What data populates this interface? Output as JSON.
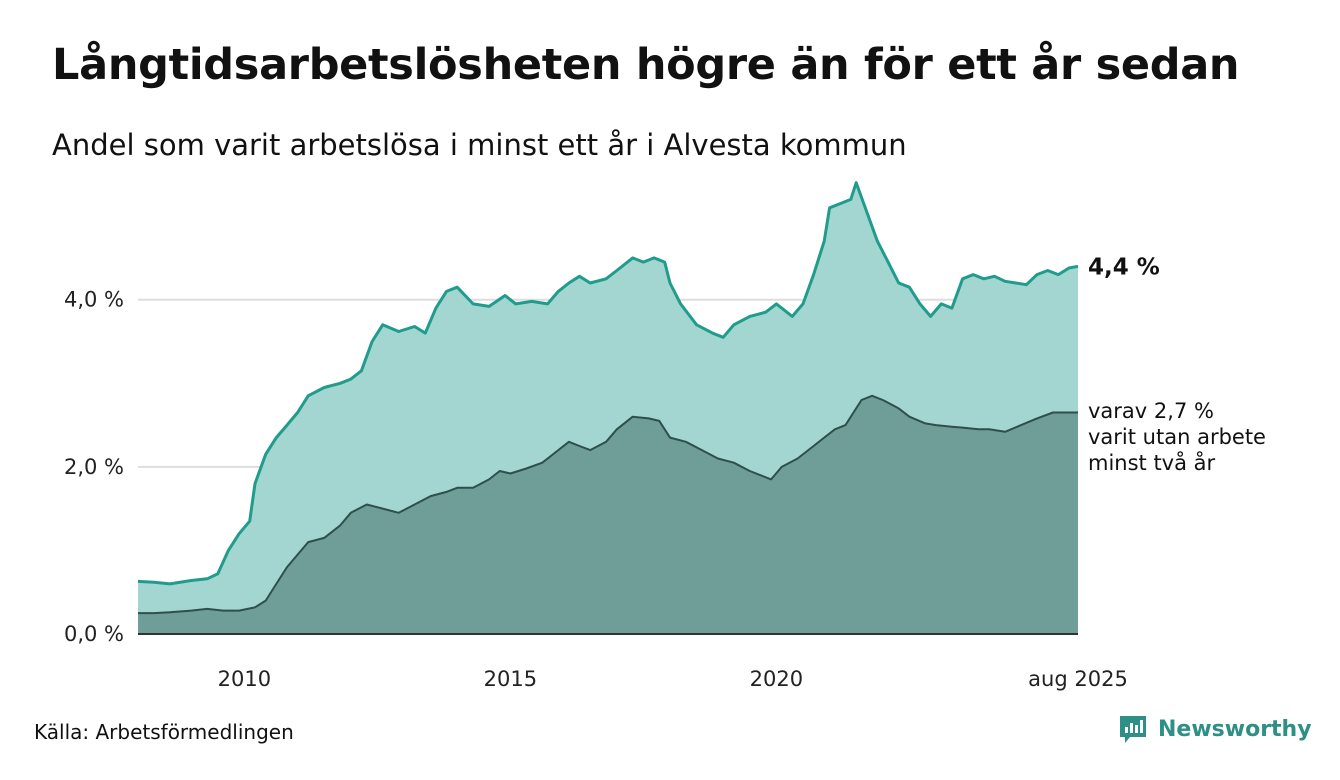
{
  "header": {
    "title": "Långtidsarbetslösheten högre än för ett år sedan",
    "subtitle": "Andel som varit arbetslösa i minst ett år i Alvesta kommun"
  },
  "footer": {
    "source": "Källa: Arbetsförmedlingen",
    "brand": "Newsworthy",
    "brand_icon": "newsworthy-logo-icon"
  },
  "colors": {
    "series_line": "#1f9c8c",
    "series_area": "#a3d6d1",
    "sub_line": "#2f4f4a",
    "sub_area": "#6f9e98",
    "grid": "#dddddd",
    "axis": "#333333",
    "brand": "#2e8f86"
  },
  "chart_data": {
    "type": "area",
    "title": "Långtidsarbetslösheten högre än för ett år sedan",
    "subtitle": "Andel som varit arbetslösa i minst ett år i Alvesta kommun",
    "xlabel": "",
    "ylabel": "",
    "x_range": [
      2008.0,
      2025.67
    ],
    "x_ticks": [
      2010,
      2015,
      2020
    ],
    "x_tick_labels": [
      "2010",
      "2015",
      "2020"
    ],
    "x_end_label": "aug 2025",
    "y_range": [
      0,
      5.6
    ],
    "y_ticks": [
      0,
      2,
      4
    ],
    "y_tick_labels": [
      "0,0 %",
      "2,0 %",
      "4,0 %"
    ],
    "grid": true,
    "series": [
      {
        "label": "4,4 %",
        "points": [
          [
            2008.0,
            0.63
          ],
          [
            2008.3,
            0.62
          ],
          [
            2008.6,
            0.6
          ],
          [
            2009.0,
            0.64
          ],
          [
            2009.3,
            0.66
          ],
          [
            2009.5,
            0.72
          ],
          [
            2009.7,
            1.0
          ],
          [
            2009.9,
            1.2
          ],
          [
            2010.1,
            1.35
          ],
          [
            2010.2,
            1.8
          ],
          [
            2010.4,
            2.15
          ],
          [
            2010.6,
            2.35
          ],
          [
            2010.8,
            2.5
          ],
          [
            2011.0,
            2.65
          ],
          [
            2011.2,
            2.85
          ],
          [
            2011.5,
            2.95
          ],
          [
            2011.8,
            3.0
          ],
          [
            2012.0,
            3.05
          ],
          [
            2012.2,
            3.15
          ],
          [
            2012.4,
            3.5
          ],
          [
            2012.6,
            3.7
          ],
          [
            2012.9,
            3.62
          ],
          [
            2013.2,
            3.68
          ],
          [
            2013.4,
            3.6
          ],
          [
            2013.6,
            3.9
          ],
          [
            2013.8,
            4.1
          ],
          [
            2014.0,
            4.15
          ],
          [
            2014.3,
            3.95
          ],
          [
            2014.6,
            3.92
          ],
          [
            2014.9,
            4.05
          ],
          [
            2015.1,
            3.95
          ],
          [
            2015.4,
            3.98
          ],
          [
            2015.7,
            3.95
          ],
          [
            2015.9,
            4.1
          ],
          [
            2016.1,
            4.2
          ],
          [
            2016.3,
            4.28
          ],
          [
            2016.5,
            4.2
          ],
          [
            2016.8,
            4.25
          ],
          [
            2017.0,
            4.35
          ],
          [
            2017.3,
            4.5
          ],
          [
            2017.5,
            4.45
          ],
          [
            2017.7,
            4.5
          ],
          [
            2017.9,
            4.45
          ],
          [
            2018.0,
            4.2
          ],
          [
            2018.2,
            3.95
          ],
          [
            2018.5,
            3.7
          ],
          [
            2018.8,
            3.6
          ],
          [
            2019.0,
            3.55
          ],
          [
            2019.2,
            3.7
          ],
          [
            2019.5,
            3.8
          ],
          [
            2019.8,
            3.85
          ],
          [
            2020.0,
            3.95
          ],
          [
            2020.1,
            3.9
          ],
          [
            2020.3,
            3.8
          ],
          [
            2020.5,
            3.95
          ],
          [
            2020.7,
            4.3
          ],
          [
            2020.9,
            4.7
          ],
          [
            2021.0,
            5.1
          ],
          [
            2021.2,
            5.15
          ],
          [
            2021.4,
            5.2
          ],
          [
            2021.5,
            5.4
          ],
          [
            2021.7,
            5.05
          ],
          [
            2021.9,
            4.7
          ],
          [
            2022.1,
            4.45
          ],
          [
            2022.3,
            4.2
          ],
          [
            2022.5,
            4.15
          ],
          [
            2022.7,
            3.95
          ],
          [
            2022.9,
            3.8
          ],
          [
            2023.1,
            3.95
          ],
          [
            2023.3,
            3.9
          ],
          [
            2023.5,
            4.25
          ],
          [
            2023.7,
            4.3
          ],
          [
            2023.9,
            4.25
          ],
          [
            2024.1,
            4.28
          ],
          [
            2024.3,
            4.22
          ],
          [
            2024.5,
            4.2
          ],
          [
            2024.7,
            4.18
          ],
          [
            2024.9,
            4.3
          ],
          [
            2025.1,
            4.35
          ],
          [
            2025.3,
            4.3
          ],
          [
            2025.5,
            4.38
          ],
          [
            2025.67,
            4.4
          ]
        ]
      },
      {
        "label": "varav 2,7 %",
        "label_lines": [
          "varav 2,7 %",
          "varit utan arbete",
          "minst två år"
        ],
        "points": [
          [
            2008.0,
            0.25
          ],
          [
            2008.3,
            0.25
          ],
          [
            2008.6,
            0.26
          ],
          [
            2009.0,
            0.28
          ],
          [
            2009.3,
            0.3
          ],
          [
            2009.6,
            0.28
          ],
          [
            2009.9,
            0.28
          ],
          [
            2010.2,
            0.32
          ],
          [
            2010.4,
            0.4
          ],
          [
            2010.6,
            0.6
          ],
          [
            2010.8,
            0.8
          ],
          [
            2011.0,
            0.95
          ],
          [
            2011.2,
            1.1
          ],
          [
            2011.5,
            1.15
          ],
          [
            2011.8,
            1.3
          ],
          [
            2012.0,
            1.45
          ],
          [
            2012.3,
            1.55
          ],
          [
            2012.6,
            1.5
          ],
          [
            2012.9,
            1.45
          ],
          [
            2013.2,
            1.55
          ],
          [
            2013.5,
            1.65
          ],
          [
            2013.8,
            1.7
          ],
          [
            2014.0,
            1.75
          ],
          [
            2014.3,
            1.75
          ],
          [
            2014.6,
            1.85
          ],
          [
            2014.8,
            1.95
          ],
          [
            2015.0,
            1.92
          ],
          [
            2015.3,
            1.98
          ],
          [
            2015.6,
            2.05
          ],
          [
            2015.9,
            2.2
          ],
          [
            2016.1,
            2.3
          ],
          [
            2016.3,
            2.25
          ],
          [
            2016.5,
            2.2
          ],
          [
            2016.8,
            2.3
          ],
          [
            2017.0,
            2.45
          ],
          [
            2017.3,
            2.6
          ],
          [
            2017.6,
            2.58
          ],
          [
            2017.8,
            2.55
          ],
          [
            2018.0,
            2.35
          ],
          [
            2018.3,
            2.3
          ],
          [
            2018.6,
            2.2
          ],
          [
            2018.9,
            2.1
          ],
          [
            2019.2,
            2.05
          ],
          [
            2019.5,
            1.95
          ],
          [
            2019.7,
            1.9
          ],
          [
            2019.9,
            1.85
          ],
          [
            2020.1,
            2.0
          ],
          [
            2020.4,
            2.1
          ],
          [
            2020.7,
            2.25
          ],
          [
            2020.9,
            2.35
          ],
          [
            2021.1,
            2.45
          ],
          [
            2021.3,
            2.5
          ],
          [
            2021.6,
            2.8
          ],
          [
            2021.8,
            2.85
          ],
          [
            2022.0,
            2.8
          ],
          [
            2022.3,
            2.7
          ],
          [
            2022.5,
            2.6
          ],
          [
            2022.8,
            2.52
          ],
          [
            2023.0,
            2.5
          ],
          [
            2023.3,
            2.48
          ],
          [
            2023.5,
            2.47
          ],
          [
            2023.8,
            2.45
          ],
          [
            2024.0,
            2.45
          ],
          [
            2024.3,
            2.42
          ],
          [
            2024.6,
            2.5
          ],
          [
            2024.9,
            2.58
          ],
          [
            2025.2,
            2.65
          ],
          [
            2025.4,
            2.65
          ],
          [
            2025.67,
            2.65
          ]
        ]
      }
    ]
  }
}
